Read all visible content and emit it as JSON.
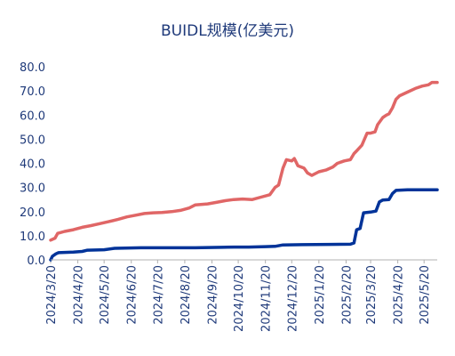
{
  "chart_data": {
    "type": "line",
    "title": "BUIDL规模(亿美元)",
    "xlabel": "",
    "ylabel": "",
    "ylim": [
      0,
      80
    ],
    "y_ticks": [
      "0.0",
      "10.0",
      "20.0",
      "30.0",
      "40.0",
      "50.0",
      "60.0",
      "70.0",
      "80.0"
    ],
    "x_tick_labels": [
      "2024/3/20",
      "2024/4/20",
      "2024/5/20",
      "2024/6/20",
      "2024/7/20",
      "2024/8/20",
      "2024/9/20",
      "2024/10/20",
      "2024/11/20",
      "2024/12/20",
      "2025/1/20",
      "2025/2/20",
      "2025/3/20",
      "2025/4/20",
      "2025/5/20"
    ],
    "x_range": [
      "2024-03-20",
      "2025-06-04"
    ],
    "grid": false,
    "legend": "none",
    "series": [
      {
        "color": "#e06666",
        "points": [
          [
            "2024-03-20",
            8.2
          ],
          [
            "2024-03-25",
            9.0
          ],
          [
            "2024-03-28",
            11.0
          ],
          [
            "2024-04-05",
            11.8
          ],
          [
            "2024-04-15",
            12.5
          ],
          [
            "2024-04-25",
            13.5
          ],
          [
            "2024-05-05",
            14.2
          ],
          [
            "2024-05-15",
            15.0
          ],
          [
            "2024-05-25",
            15.8
          ],
          [
            "2024-06-05",
            16.8
          ],
          [
            "2024-06-15",
            17.8
          ],
          [
            "2024-06-25",
            18.5
          ],
          [
            "2024-07-05",
            19.2
          ],
          [
            "2024-07-15",
            19.5
          ],
          [
            "2024-07-25",
            19.6
          ],
          [
            "2024-08-05",
            20.0
          ],
          [
            "2024-08-15",
            20.5
          ],
          [
            "2024-08-25",
            21.5
          ],
          [
            "2024-09-01",
            22.8
          ],
          [
            "2024-09-15",
            23.2
          ],
          [
            "2024-09-25",
            23.8
          ],
          [
            "2024-10-05",
            24.5
          ],
          [
            "2024-10-15",
            25.0
          ],
          [
            "2024-10-25",
            25.2
          ],
          [
            "2024-11-05",
            25.0
          ],
          [
            "2024-11-15",
            26.0
          ],
          [
            "2024-11-25",
            27.0
          ],
          [
            "2024-12-01",
            30.0
          ],
          [
            "2024-12-05",
            31.0
          ],
          [
            "2024-12-10",
            38.0
          ],
          [
            "2024-12-14",
            41.5
          ],
          [
            "2024-12-20",
            41.0
          ],
          [
            "2024-12-23",
            42.0
          ],
          [
            "2024-12-27",
            39.0
          ],
          [
            "2025-01-03",
            38.0
          ],
          [
            "2025-01-07",
            36.0
          ],
          [
            "2025-01-12",
            35.0
          ],
          [
            "2025-01-20",
            36.5
          ],
          [
            "2025-01-28",
            37.2
          ],
          [
            "2025-02-05",
            38.5
          ],
          [
            "2025-02-10",
            40.0
          ],
          [
            "2025-02-18",
            41.0
          ],
          [
            "2025-02-25",
            41.5
          ],
          [
            "2025-03-01",
            44.0
          ],
          [
            "2025-03-05",
            45.5
          ],
          [
            "2025-03-10",
            47.5
          ],
          [
            "2025-03-13",
            50.0
          ],
          [
            "2025-03-16",
            52.5
          ],
          [
            "2025-03-20",
            52.5
          ],
          [
            "2025-03-25",
            53.0
          ],
          [
            "2025-03-28",
            56.0
          ],
          [
            "2025-04-03",
            59.0
          ],
          [
            "2025-04-07",
            60.0
          ],
          [
            "2025-04-10",
            60.5
          ],
          [
            "2025-04-14",
            63.0
          ],
          [
            "2025-04-18",
            66.5
          ],
          [
            "2025-04-22",
            68.0
          ],
          [
            "2025-05-01",
            69.5
          ],
          [
            "2025-05-10",
            71.0
          ],
          [
            "2025-05-18",
            72.0
          ],
          [
            "2025-05-25",
            72.5
          ],
          [
            "2025-05-29",
            73.5
          ],
          [
            "2025-06-04",
            73.5
          ]
        ]
      },
      {
        "color": "#003399",
        "points": [
          [
            "2024-03-20",
            0.0
          ],
          [
            "2024-03-22",
            1.5
          ],
          [
            "2024-03-26",
            2.5
          ],
          [
            "2024-03-29",
            3.0
          ],
          [
            "2024-04-15",
            3.2
          ],
          [
            "2024-04-25",
            3.5
          ],
          [
            "2024-05-01",
            4.0
          ],
          [
            "2024-05-20",
            4.2
          ],
          [
            "2024-06-01",
            4.8
          ],
          [
            "2024-07-01",
            5.0
          ],
          [
            "2024-08-01",
            5.0
          ],
          [
            "2024-09-01",
            5.0
          ],
          [
            "2024-10-01",
            5.2
          ],
          [
            "2024-10-15",
            5.3
          ],
          [
            "2024-11-01",
            5.3
          ],
          [
            "2024-11-20",
            5.5
          ],
          [
            "2024-12-01",
            5.6
          ],
          [
            "2024-12-10",
            6.2
          ],
          [
            "2025-01-01",
            6.3
          ],
          [
            "2025-02-01",
            6.4
          ],
          [
            "2025-02-25",
            6.5
          ],
          [
            "2025-03-01",
            7.0
          ],
          [
            "2025-03-04",
            12.5
          ],
          [
            "2025-03-08",
            13.0
          ],
          [
            "2025-03-12",
            19.5
          ],
          [
            "2025-03-20",
            19.8
          ],
          [
            "2025-03-26",
            20.2
          ],
          [
            "2025-03-30",
            24.0
          ],
          [
            "2025-04-03",
            24.8
          ],
          [
            "2025-04-10",
            25.0
          ],
          [
            "2025-04-14",
            27.5
          ],
          [
            "2025-04-18",
            28.8
          ],
          [
            "2025-05-01",
            29.0
          ],
          [
            "2025-05-15",
            29.0
          ],
          [
            "2025-06-04",
            29.0
          ]
        ]
      }
    ]
  }
}
